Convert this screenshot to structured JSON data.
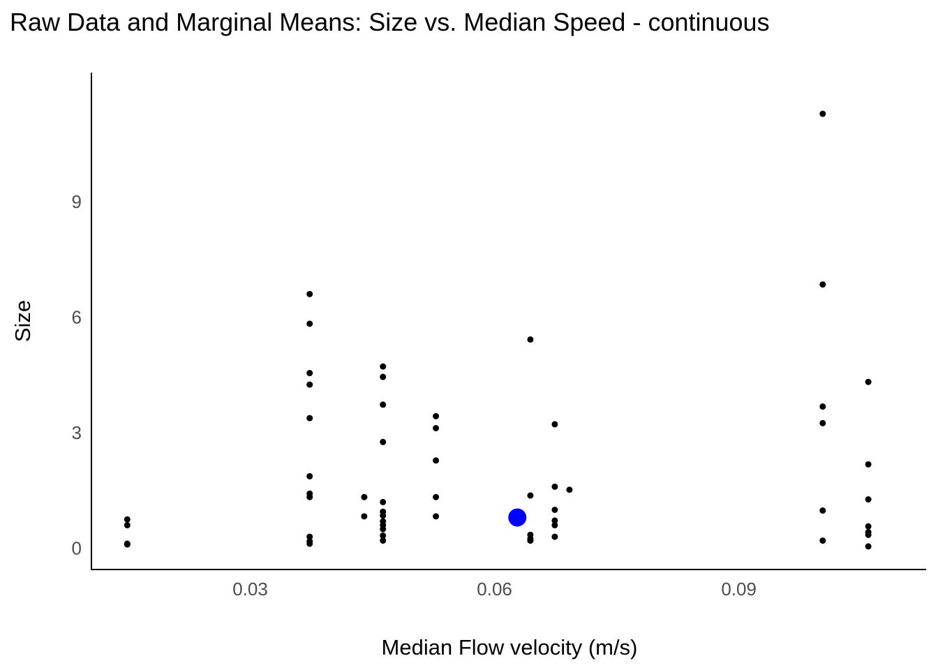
{
  "chart_data": {
    "type": "scatter",
    "title": "Raw Data and Marginal Means: Size vs. Median Speed - continuous",
    "xlabel": "Median Flow velocity (m/s)",
    "ylabel": "Size",
    "xlim": [
      0.0105,
      0.113
    ],
    "ylim": [
      -0.55,
      12.35
    ],
    "xticks": [
      0.03,
      0.06,
      0.09
    ],
    "xtick_labels": [
      "0.03",
      "0.06",
      "0.09"
    ],
    "yticks": [
      0,
      3,
      6,
      9
    ],
    "ytick_labels": [
      "0",
      "3",
      "6",
      "9"
    ],
    "grid": false,
    "legend": "none",
    "series": [
      {
        "color": "#000000",
        "points": [
          [
            0.0149,
            0.75
          ],
          [
            0.0149,
            0.6
          ],
          [
            0.0149,
            0.12
          ],
          [
            0.0149,
            0.1
          ],
          [
            0.0373,
            6.6
          ],
          [
            0.0373,
            5.83
          ],
          [
            0.0373,
            4.55
          ],
          [
            0.0373,
            4.25
          ],
          [
            0.0373,
            3.38
          ],
          [
            0.0373,
            1.87
          ],
          [
            0.0373,
            1.42
          ],
          [
            0.0373,
            1.33
          ],
          [
            0.0373,
            0.3
          ],
          [
            0.0373,
            0.18
          ],
          [
            0.0373,
            0.12
          ],
          [
            0.044,
            1.33
          ],
          [
            0.044,
            0.83
          ],
          [
            0.0463,
            4.72
          ],
          [
            0.0463,
            4.45
          ],
          [
            0.0463,
            3.73
          ],
          [
            0.0463,
            2.76
          ],
          [
            0.0463,
            1.2
          ],
          [
            0.0463,
            0.95
          ],
          [
            0.0463,
            0.85
          ],
          [
            0.0463,
            0.7
          ],
          [
            0.0463,
            0.6
          ],
          [
            0.0463,
            0.5
          ],
          [
            0.0463,
            0.33
          ],
          [
            0.0463,
            0.2
          ],
          [
            0.0528,
            3.43
          ],
          [
            0.0528,
            3.12
          ],
          [
            0.0528,
            2.28
          ],
          [
            0.0528,
            1.33
          ],
          [
            0.0528,
            0.83
          ],
          [
            0.0644,
            5.42
          ],
          [
            0.0644,
            1.37
          ],
          [
            0.0644,
            0.35
          ],
          [
            0.0644,
            0.25
          ],
          [
            0.0644,
            0.2
          ],
          [
            0.0674,
            3.22
          ],
          [
            0.0674,
            1.6
          ],
          [
            0.0674,
            1.0
          ],
          [
            0.0674,
            0.72
          ],
          [
            0.0674,
            0.6
          ],
          [
            0.0674,
            0.3
          ],
          [
            0.0692,
            1.52
          ],
          [
            0.1003,
            11.28
          ],
          [
            0.1003,
            6.85
          ],
          [
            0.1003,
            3.68
          ],
          [
            0.1003,
            3.25
          ],
          [
            0.1003,
            0.98
          ],
          [
            0.1003,
            0.2
          ],
          [
            0.1059,
            4.32
          ],
          [
            0.1059,
            2.18
          ],
          [
            0.1059,
            1.27
          ],
          [
            0.1059,
            0.57
          ],
          [
            0.1059,
            0.42
          ],
          [
            0.1059,
            0.35
          ],
          [
            0.1059,
            0.05
          ]
        ]
      },
      {
        "color": "#0000ff",
        "points": [
          [
            0.0628,
            0.8
          ]
        ]
      }
    ]
  }
}
